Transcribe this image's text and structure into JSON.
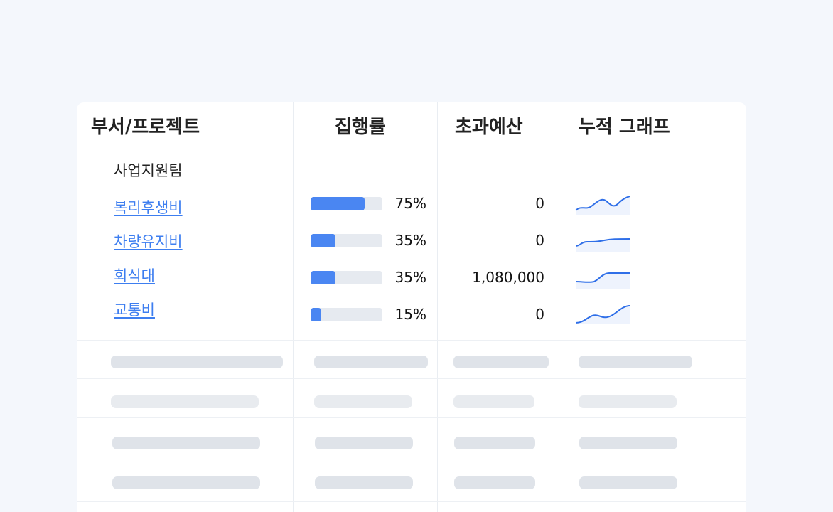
{
  "headers": {
    "dept": "부서/프로젝트",
    "exec_rate": "집행률",
    "over_budget": "초과예산",
    "cumulative": "누적 그래프"
  },
  "group": {
    "name": "사업지원팀"
  },
  "rows": [
    {
      "name": "복리후생비",
      "rate": "75%",
      "rate_value": 0.75,
      "over": "0",
      "spark": "wave"
    },
    {
      "name": "차량유지비",
      "rate": "35%",
      "rate_value": 0.35,
      "over": "0",
      "spark": "flat"
    },
    {
      "name": "회식대",
      "rate": "35%",
      "rate_value": 0.35,
      "over": "1,080,000",
      "spark": "step"
    },
    {
      "name": "교통비",
      "rate": "15%",
      "rate_value": 0.15,
      "over": "0",
      "spark": "rise"
    }
  ],
  "colors": {
    "accent": "#3d7ef0",
    "bar_fill": "#4a86f2",
    "bar_track": "#e6eaf0",
    "spark_line": "#2f6fe8",
    "spark_fill": "#eef3fd"
  }
}
